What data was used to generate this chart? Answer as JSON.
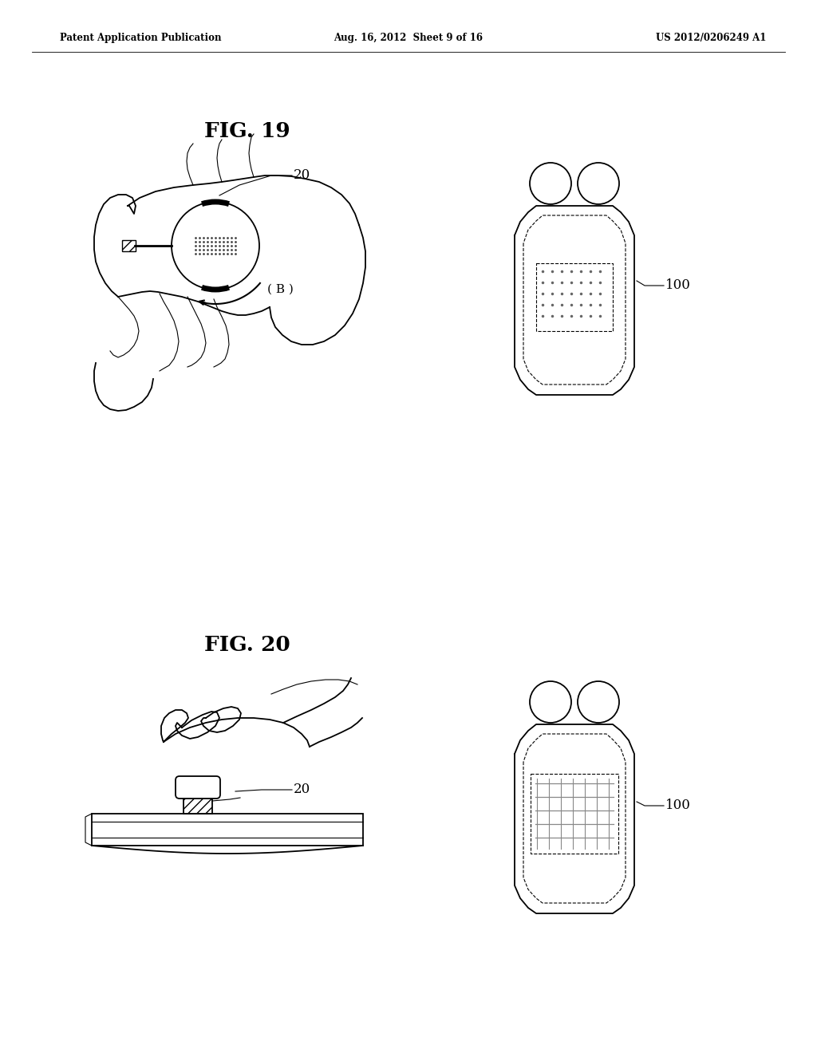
{
  "bg_color": "#ffffff",
  "line_color": "#000000",
  "header_left": "Patent Application Publication",
  "header_mid": "Aug. 16, 2012  Sheet 9 of 16",
  "header_right": "US 2012/0206249 A1",
  "fig19_label": "FIG. 19",
  "fig20_label": "FIG. 20",
  "label_20_a": "20",
  "label_100_a": "100",
  "label_B": "( B )",
  "label_20_b": "20",
  "label_100_b": "100"
}
